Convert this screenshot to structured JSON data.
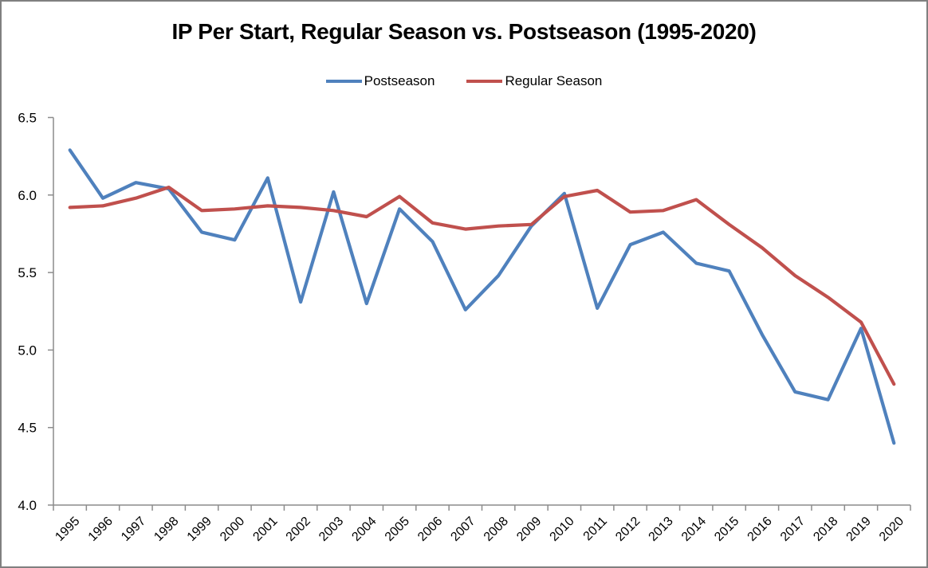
{
  "chart": {
    "title": "IP Per Start, Regular Season vs. Postseason (1995-2020)"
  },
  "chart_data": {
    "type": "line",
    "title": "IP Per Start, Regular Season vs. Postseason (1995-2020)",
    "categories": [
      "1995",
      "1996",
      "1997",
      "1998",
      "1999",
      "2000",
      "2001",
      "2002",
      "2003",
      "2004",
      "2005",
      "2006",
      "2007",
      "2008",
      "2009",
      "2010",
      "2011",
      "2012",
      "2013",
      "2014",
      "2015",
      "2016",
      "2017",
      "2018",
      "2019",
      "2020"
    ],
    "series": [
      {
        "name": "Postseason",
        "color": "#4F81BD",
        "values": [
          6.29,
          5.98,
          6.08,
          6.04,
          5.76,
          5.71,
          6.11,
          5.31,
          6.02,
          5.3,
          5.91,
          5.7,
          5.26,
          5.48,
          5.8,
          6.01,
          5.27,
          5.68,
          5.76,
          5.56,
          5.51,
          5.1,
          4.73,
          4.68,
          5.14,
          4.4
        ]
      },
      {
        "name": "Regular Season",
        "color": "#C0504D",
        "values": [
          5.92,
          5.93,
          5.98,
          6.05,
          5.9,
          5.91,
          5.93,
          5.92,
          5.9,
          5.86,
          5.99,
          5.82,
          5.78,
          5.8,
          5.81,
          5.99,
          6.03,
          5.89,
          5.9,
          5.97,
          5.81,
          5.66,
          5.48,
          5.34,
          5.18,
          4.78
        ]
      }
    ],
    "xlabel": "",
    "ylabel": "",
    "ylim": [
      4.0,
      6.5
    ],
    "y_ticks": [
      "6.5",
      "6.0",
      "5.5",
      "5.0",
      "4.5",
      "4.0"
    ],
    "grid": "off",
    "legend_position": "top",
    "axis_color": "#8C8C8C",
    "text_color": "#000000"
  }
}
